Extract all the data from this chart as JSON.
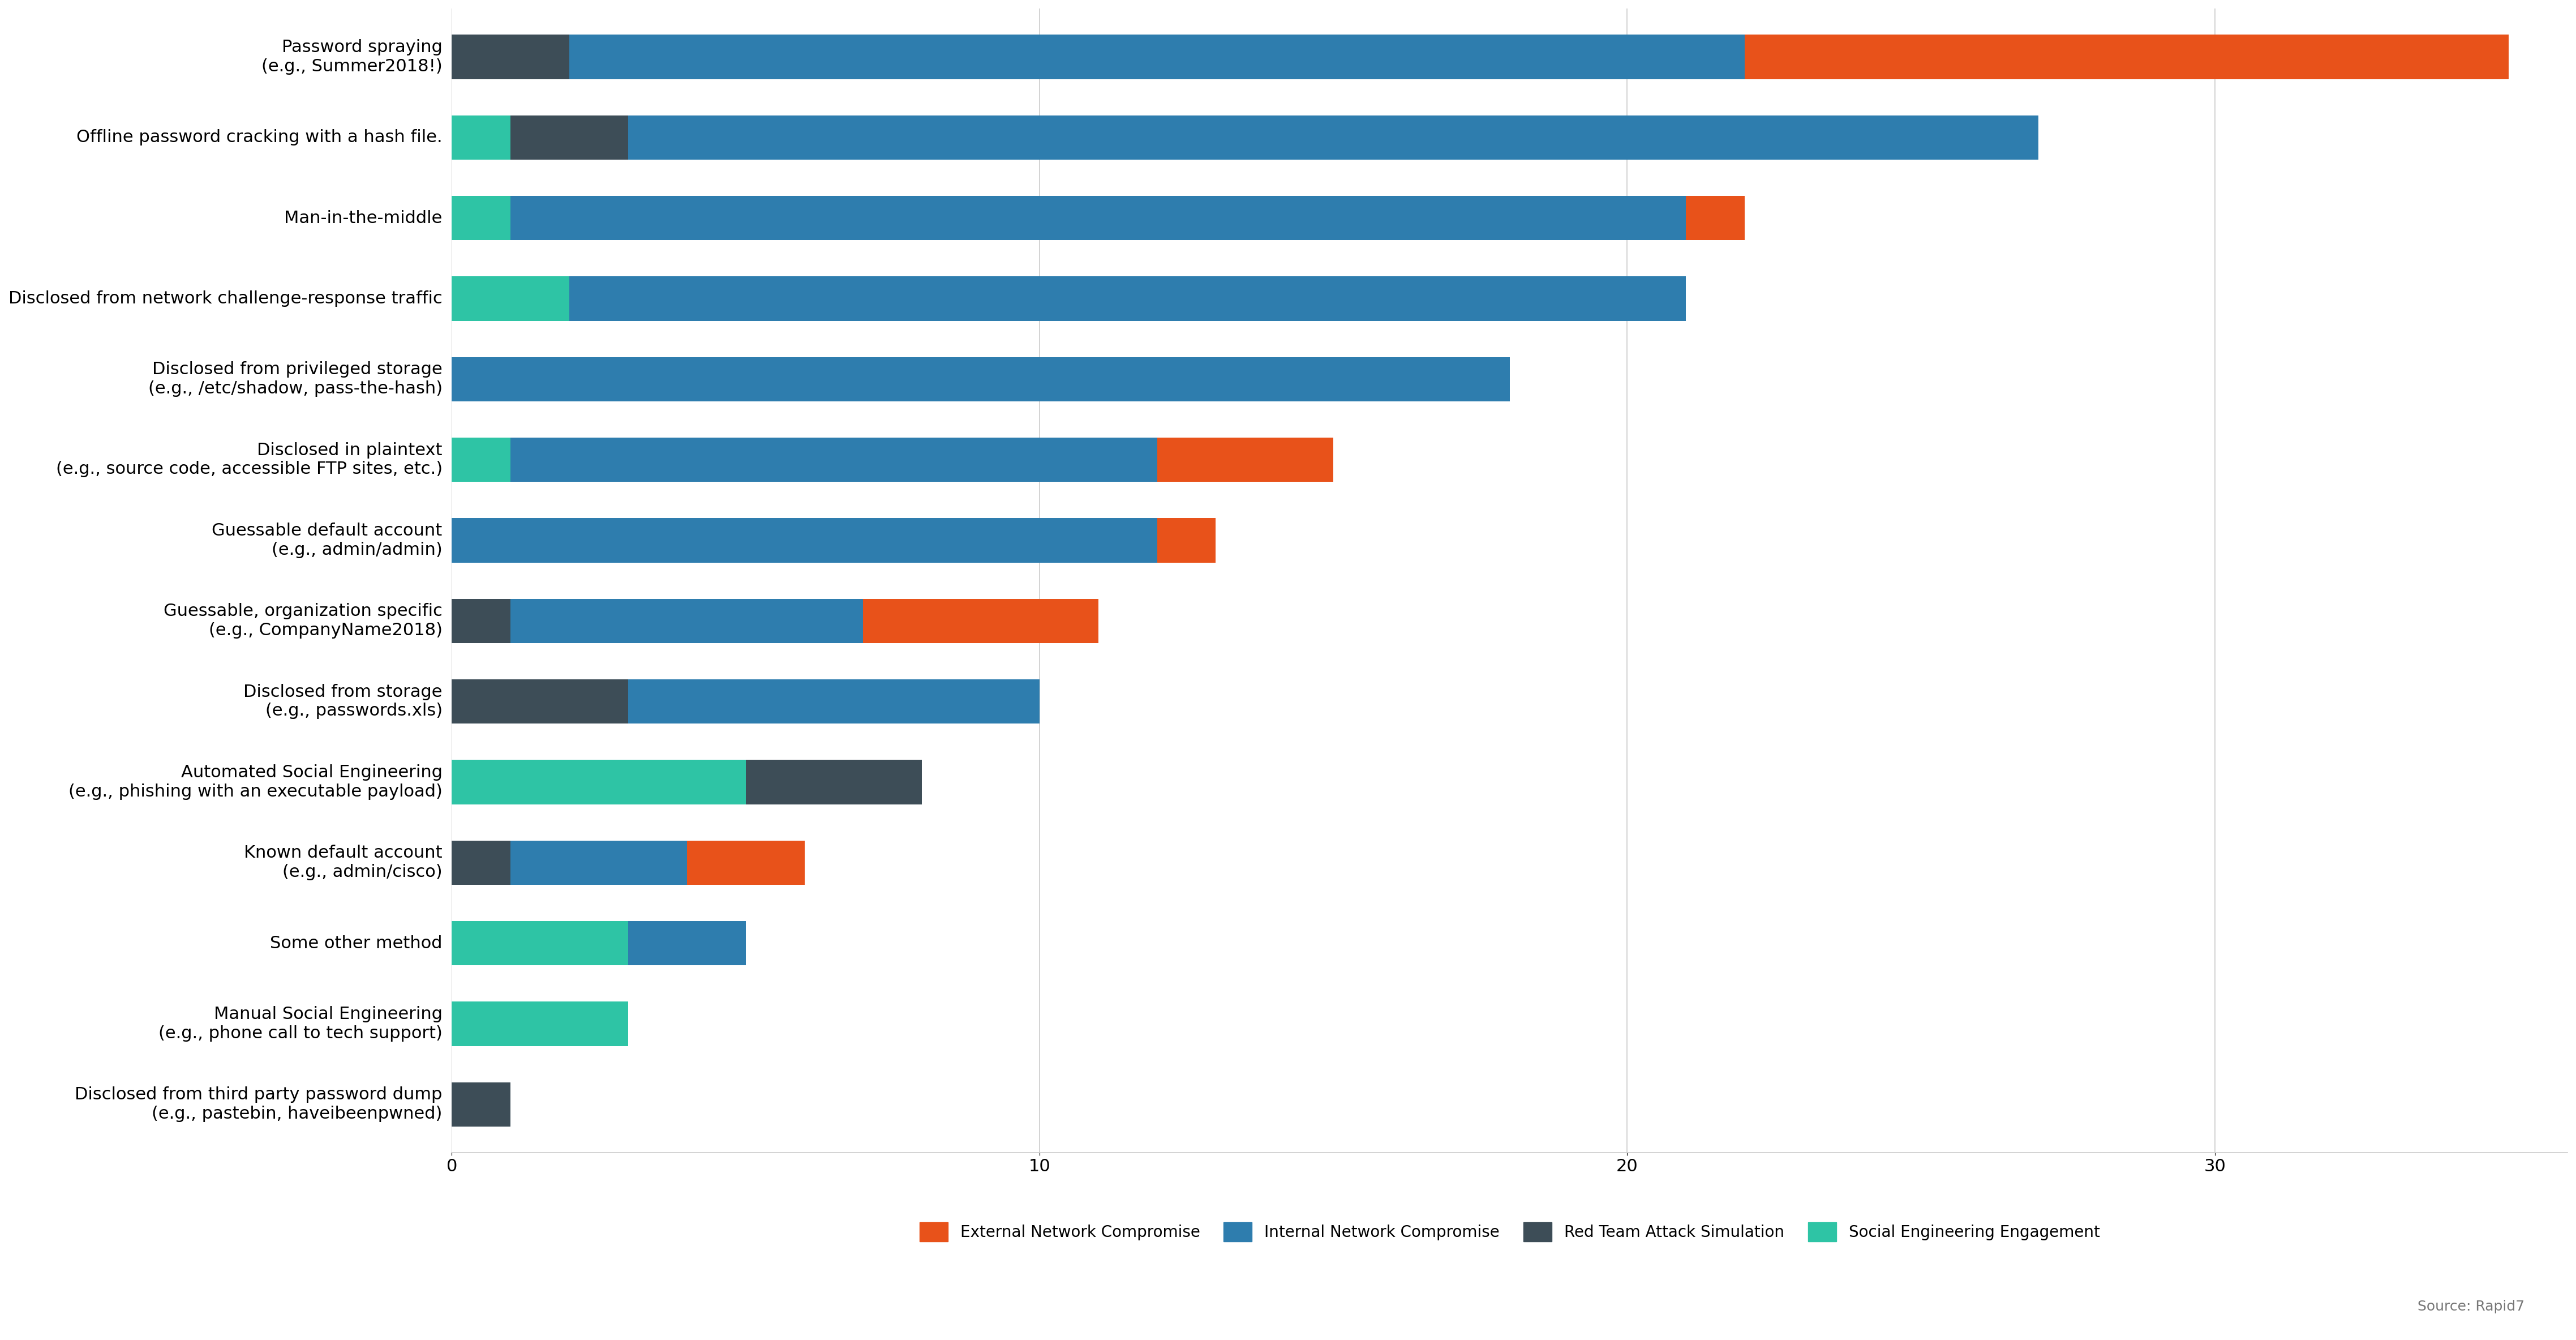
{
  "categories": [
    "Password spraying\n(e.g., Summer2018!)",
    "Offline password cracking with a hash file.",
    "Man-in-the-middle",
    "Disclosed from network challenge-response traffic",
    "Disclosed from privileged storage\n(e.g., /etc/shadow, pass-the-hash)",
    "Disclosed in plaintext\n(e.g., source code, accessible FTP sites, etc.)",
    "Guessable default account\n(e.g., admin/admin)",
    "Guessable, organization specific\n(e.g., CompanyName2018)",
    "Disclosed from storage\n(e.g., passwords.xls)",
    "Automated Social Engineering\n(e.g., phishing with an executable payload)",
    "Known default account\n(e.g., admin/cisco)",
    "Some other method",
    "Manual Social Engineering\n(e.g., phone call to tech support)",
    "Disclosed from third party password dump\n(e.g., pastebin, haveibeenpwned)"
  ],
  "external": [
    13,
    0,
    1,
    0,
    0,
    3,
    1,
    4,
    0,
    0,
    2,
    0,
    0,
    0
  ],
  "internal": [
    20,
    24,
    20,
    19,
    18,
    11,
    12,
    6,
    7,
    0,
    3,
    2,
    0,
    0
  ],
  "red_team": [
    2,
    2,
    0,
    0,
    0,
    0,
    0,
    1,
    3,
    3,
    1,
    0,
    0,
    1
  ],
  "social_eng": [
    0,
    1,
    1,
    2,
    0,
    1,
    0,
    0,
    0,
    5,
    0,
    3,
    3,
    0
  ],
  "colors": {
    "external": "#E8521A",
    "internal": "#2E7DAE",
    "red_team": "#3D4D57",
    "social_eng": "#2EC4A5"
  },
  "legend_labels": [
    "External Network Compromise",
    "Internal Network Compromise",
    "Red Team Attack Simulation",
    "Social Engineering Engagement"
  ],
  "xlim": [
    0,
    36
  ],
  "xticks": [
    0,
    10,
    20,
    30
  ],
  "source_text": "Source: Rapid7",
  "label_fontsize": 22,
  "tick_fontsize": 22,
  "legend_fontsize": 20,
  "source_fontsize": 18
}
